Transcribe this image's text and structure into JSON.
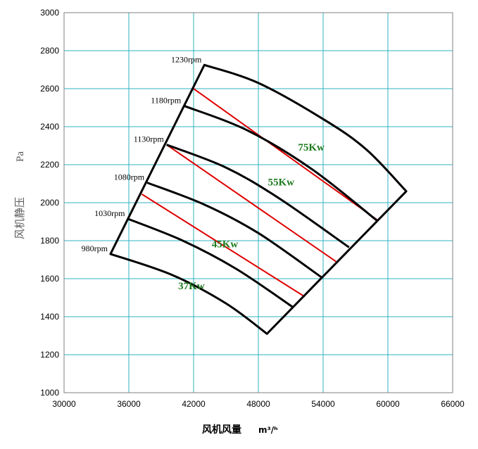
{
  "chart_data": {
    "type": "line",
    "xlabel": "风机风量",
    "xunit": "m³/ʰ",
    "ylabel": "风机静压",
    "yunit": "Pa",
    "xlim": [
      30000,
      66000
    ],
    "ylim": [
      1000,
      3000
    ],
    "xticks": [
      "30000",
      "36000",
      "42000",
      "48000",
      "54000",
      "60000",
      "66000"
    ],
    "yticks": [
      "1000",
      "1200",
      "1400",
      "1600",
      "1800",
      "2000",
      "2200",
      "2400",
      "2600",
      "2800",
      "3000"
    ],
    "grid": true,
    "colors": {
      "curve": "#000000",
      "power": "#e00000",
      "power_label": "#1e7a1e",
      "grid": "#2fb3c0"
    },
    "speed_curves": [
      {
        "name": "980rpm",
        "points": [
          [
            34300,
            1730
          ],
          [
            40000,
            1620
          ],
          [
            45000,
            1470
          ],
          [
            48800,
            1310
          ]
        ]
      },
      {
        "name": "1030rpm",
        "points": [
          [
            35900,
            1915
          ],
          [
            41000,
            1800
          ],
          [
            46000,
            1650
          ],
          [
            51200,
            1450
          ]
        ]
      },
      {
        "name": "1080rpm",
        "points": [
          [
            37700,
            2105
          ],
          [
            43000,
            1990
          ],
          [
            48000,
            1840
          ],
          [
            53900,
            1605
          ]
        ]
      },
      {
        "name": "1130rpm",
        "points": [
          [
            39500,
            2305
          ],
          [
            45000,
            2185
          ],
          [
            50000,
            2020
          ],
          [
            56400,
            1765
          ]
        ]
      },
      {
        "name": "1180rpm",
        "points": [
          [
            41100,
            2510
          ],
          [
            47000,
            2380
          ],
          [
            53000,
            2175
          ],
          [
            59000,
            1905
          ]
        ]
      },
      {
        "name": "1230rpm",
        "points": [
          [
            43000,
            2725
          ],
          [
            48000,
            2630
          ],
          [
            54000,
            2440
          ],
          [
            58000,
            2280
          ],
          [
            61700,
            2060
          ]
        ]
      }
    ],
    "boundary_lines": [
      {
        "points": [
          [
            34300,
            1730
          ],
          [
            43000,
            2725
          ]
        ]
      },
      {
        "points": [
          [
            48800,
            1310
          ],
          [
            61700,
            2060
          ]
        ]
      }
    ],
    "power_lines": [
      {
        "name": "75Kw",
        "points": [
          [
            42000,
            2600
          ],
          [
            59000,
            1910
          ]
        ]
      },
      {
        "name": "55Kw",
        "points": [
          [
            39500,
            2305
          ],
          [
            55200,
            1690
          ]
        ]
      },
      {
        "name": "45Kw",
        "points": [
          [
            37200,
            2045
          ],
          [
            52300,
            1505
          ]
        ]
      },
      {
        "name": "37Kw",
        "points": []
      }
    ],
    "power_labels": [
      {
        "text": "75Kw",
        "x": 52900,
        "y": 2275
      },
      {
        "text": "55Kw",
        "x": 50100,
        "y": 2090
      },
      {
        "text": "45Kw",
        "x": 44900,
        "y": 1765
      },
      {
        "text": "37Kw",
        "x": 41800,
        "y": 1545
      }
    ]
  }
}
